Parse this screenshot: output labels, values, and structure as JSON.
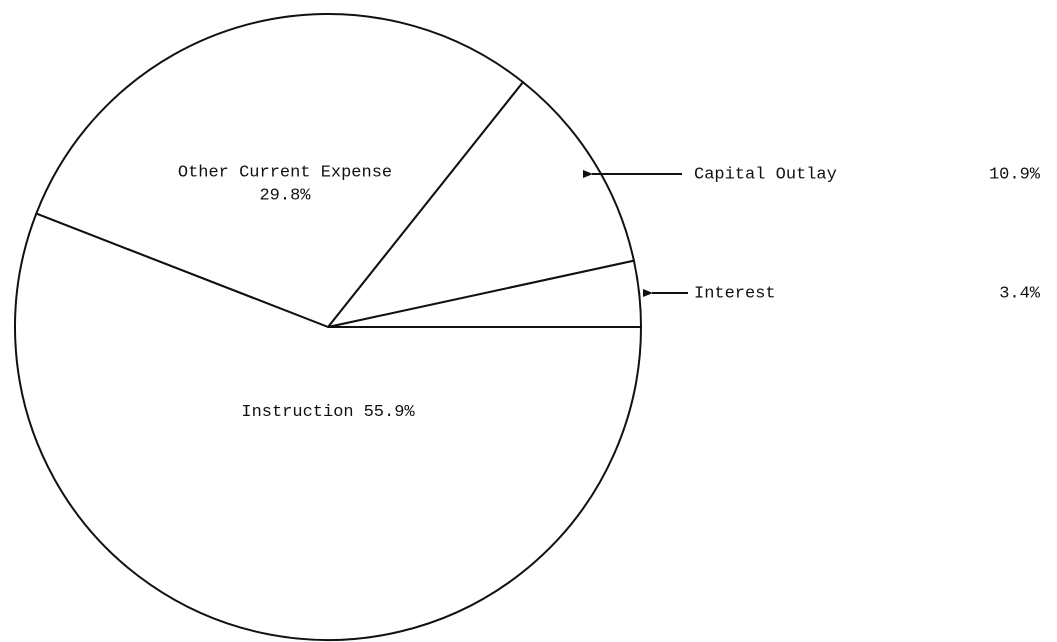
{
  "chart_data": {
    "type": "pie",
    "categories": [
      "Interest",
      "Capital Outlay",
      "Other Current Expense",
      "Instruction"
    ],
    "values": [
      3.4,
      10.9,
      29.8,
      55.9
    ],
    "value_labels": [
      "3.4%",
      "10.9%",
      "29.8%",
      "55.9%"
    ],
    "color": "#ffffff"
  }
}
